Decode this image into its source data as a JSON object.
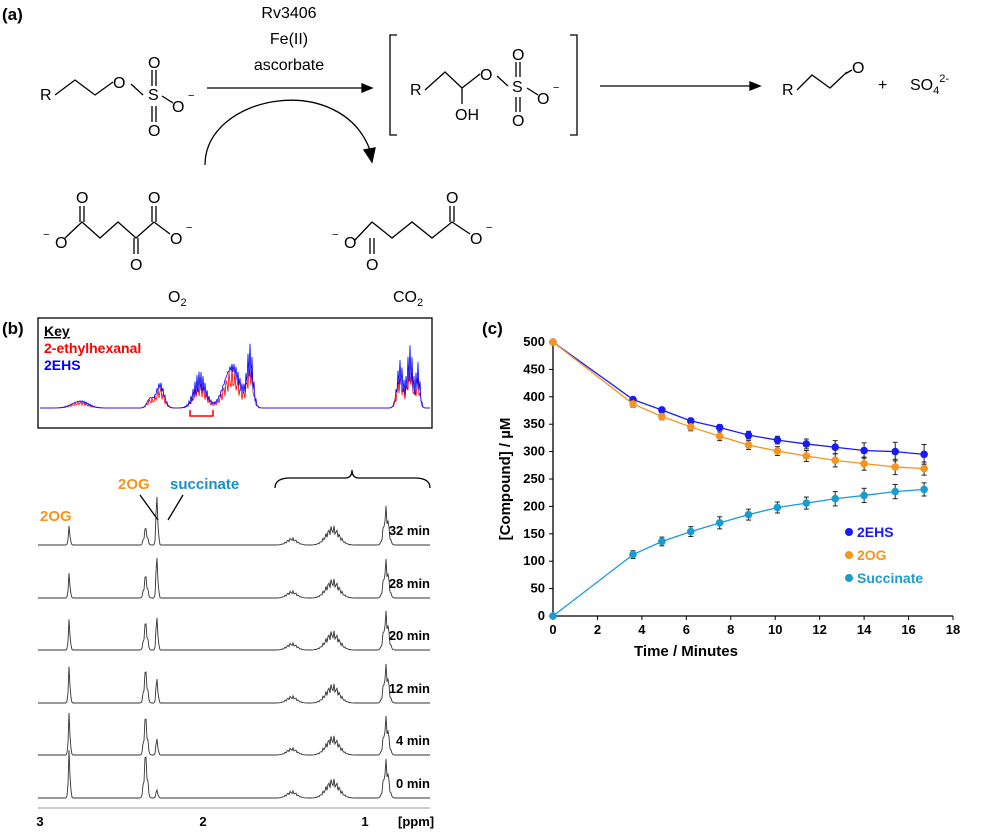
{
  "panel_a": {
    "label": "(a)",
    "reagents": [
      "Rv3406",
      "Fe(II)",
      "ascorbate"
    ],
    "substrate_R": "R",
    "intermediate_R": "R",
    "intermediate_OH": "OH",
    "product_R": "R",
    "plus": "+",
    "sulfate": "SO",
    "sulfate_sub": "4",
    "sulfate_sup": "2-",
    "cosubstrate_label": "O",
    "cosubstrate_sub": "2",
    "coproduct_label": "CO",
    "coproduct_sub": "2",
    "atom_O": "O",
    "atom_S": "S",
    "minus": "−"
  },
  "panel_b": {
    "label": "(b)",
    "key_title": "Key",
    "key_items": [
      {
        "label": "2-ethylhexanal",
        "color": "#ff0000"
      },
      {
        "label": "2EHS",
        "color": "#0000ff"
      }
    ],
    "peak_labels": [
      {
        "text": "2OG",
        "color": "#f7941d"
      },
      {
        "text": "2OG",
        "color": "#f7941d"
      },
      {
        "text": "succinate",
        "color": "#1a8fc9"
      }
    ],
    "traces": [
      "32 min",
      "28 min",
      "20 min",
      "12 min",
      "4 min",
      "0 min"
    ],
    "axis_ticks": [
      "3",
      "2",
      "1"
    ],
    "axis_unit": "[ppm]"
  },
  "chart_data": {
    "label": "(c)",
    "type": "scatter",
    "xlabel": "Time / Minutes",
    "ylabel": "[Compound] / µM",
    "xlim": [
      0,
      18
    ],
    "ylim": [
      0,
      500
    ],
    "xticks": [
      "0",
      "2",
      "4",
      "6",
      "8",
      "10",
      "12",
      "14",
      "16",
      "18"
    ],
    "yticks": [
      "0",
      "50",
      "100",
      "150",
      "200",
      "250",
      "300",
      "350",
      "400",
      "450",
      "500"
    ],
    "legend_position": "right-middle",
    "grid": false,
    "x": [
      0,
      3.6,
      4.9,
      6.2,
      7.5,
      8.8,
      10.1,
      11.4,
      12.7,
      14.0,
      15.4,
      16.7
    ],
    "series": [
      {
        "name": "2EHS",
        "color": "#1a1aff",
        "values": [
          500,
          395,
          376,
          356,
          344,
          330,
          321,
          314,
          308,
          302,
          300,
          295
        ],
        "errors": [
          0,
          4,
          4,
          5,
          5,
          7,
          7,
          9,
          12,
          14,
          17,
          18
        ]
      },
      {
        "name": "2OG",
        "color": "#f7941d",
        "values": [
          500,
          387,
          364,
          345,
          328,
          312,
          301,
          292,
          284,
          278,
          272,
          269
        ],
        "errors": [
          0,
          6,
          6,
          7,
          8,
          8,
          8,
          10,
          12,
          12,
          14,
          12
        ]
      },
      {
        "name": "Succinate",
        "color": "#1a9cd0",
        "values": [
          0,
          112,
          136,
          154,
          170,
          185,
          198,
          206,
          214,
          220,
          227,
          231
        ],
        "errors": [
          0,
          7,
          8,
          9,
          11,
          10,
          10,
          11,
          13,
          13,
          13,
          12
        ]
      }
    ]
  }
}
